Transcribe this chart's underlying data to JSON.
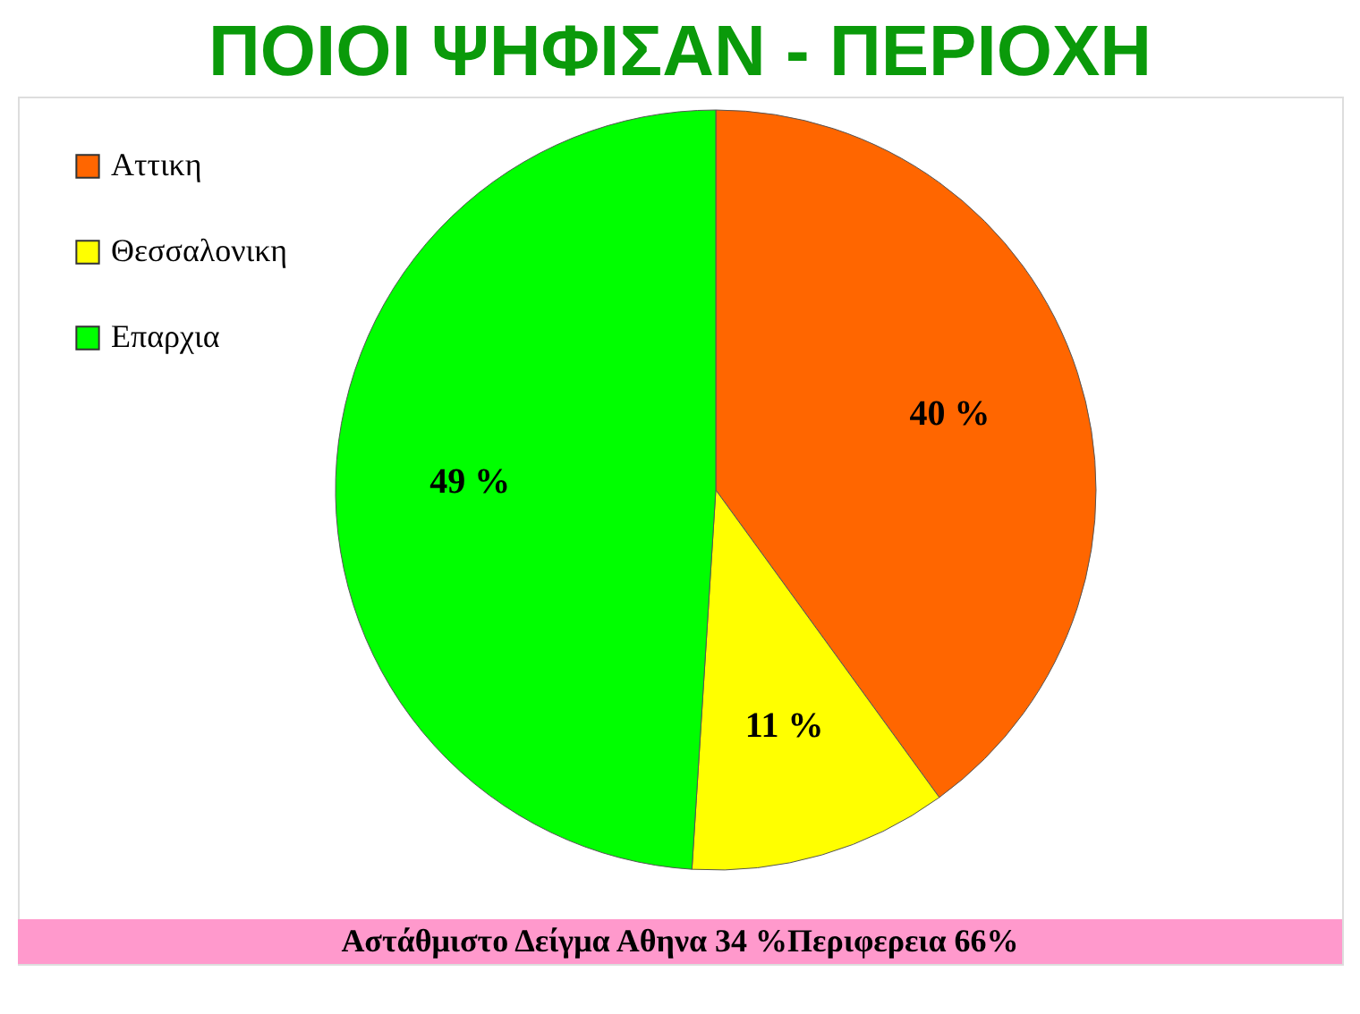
{
  "chart_data": {
    "type": "pie",
    "title": "ΠΟΙΟΙ ΨΗΦΙΣΑΝ  - ΠΕΡΙΟΧΗ",
    "categories": [
      "Αττικη",
      "Θεσσαλονικη",
      "Επαρχια"
    ],
    "values": [
      40,
      11,
      49
    ],
    "colors": [
      "#ff6600",
      "#ffff00",
      "#00ff00"
    ],
    "value_labels": [
      "40 %",
      "11 %",
      "49 %"
    ],
    "legend": "top left",
    "annotations": [
      "Αστάθμιστο Δείγμα Αθηνα 34 %Περιφερεια 66%"
    ]
  }
}
